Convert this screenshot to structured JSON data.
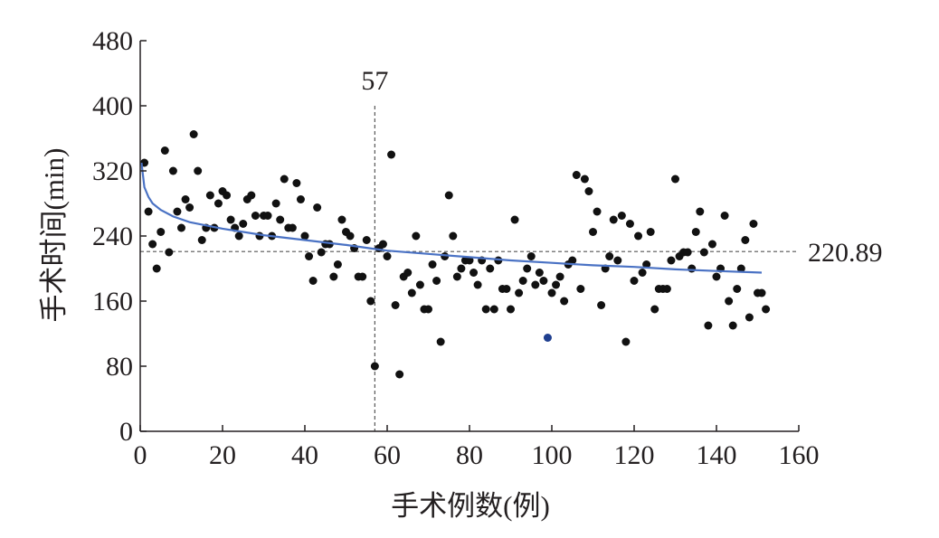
{
  "chart_data": {
    "type": "scatter",
    "title": "",
    "xlabel": "手术例数(例)",
    "ylabel": "手术时间(min)",
    "xlim": [
      0,
      160
    ],
    "ylim": [
      0,
      480
    ],
    "x_ticks": [
      0,
      20,
      40,
      60,
      80,
      100,
      120,
      140,
      160
    ],
    "y_ticks": [
      0,
      80,
      160,
      240,
      320,
      400,
      480
    ],
    "x_tick_labels": [
      "0",
      "20",
      "40",
      "60",
      "80",
      "100",
      "120",
      "140",
      "160"
    ],
    "y_tick_labels": [
      "0",
      "80",
      "160",
      "240",
      "320",
      "400",
      "480"
    ],
    "grid": false,
    "legend": "none",
    "point_color": "#111111",
    "highlight_point_color": "#1f3f8f",
    "fit_color": "#4a72c4",
    "reference_line_color": "#555555",
    "series": [
      {
        "type": "scatter",
        "points": [
          [
            1,
            330
          ],
          [
            2,
            270
          ],
          [
            3,
            230
          ],
          [
            4,
            200
          ],
          [
            5,
            245
          ],
          [
            6,
            345
          ],
          [
            7,
            220
          ],
          [
            8,
            320
          ],
          [
            9,
            270
          ],
          [
            10,
            250
          ],
          [
            11,
            285
          ],
          [
            12,
            275
          ],
          [
            13,
            365
          ],
          [
            14,
            320
          ],
          [
            15,
            235
          ],
          [
            16,
            250
          ],
          [
            17,
            290
          ],
          [
            18,
            250
          ],
          [
            19,
            280
          ],
          [
            20,
            295
          ],
          [
            21,
            290
          ],
          [
            22,
            260
          ],
          [
            23,
            250
          ],
          [
            24,
            240
          ],
          [
            25,
            255
          ],
          [
            26,
            285
          ],
          [
            27,
            290
          ],
          [
            28,
            265
          ],
          [
            29,
            240
          ],
          [
            30,
            265
          ],
          [
            31,
            265
          ],
          [
            32,
            240
          ],
          [
            33,
            280
          ],
          [
            34,
            260
          ],
          [
            35,
            310
          ],
          [
            36,
            250
          ],
          [
            37,
            250
          ],
          [
            38,
            305
          ],
          [
            39,
            285
          ],
          [
            40,
            240
          ],
          [
            41,
            215
          ],
          [
            42,
            185
          ],
          [
            43,
            275
          ],
          [
            44,
            220
          ],
          [
            45,
            230
          ],
          [
            46,
            230
          ],
          [
            47,
            190
          ],
          [
            48,
            205
          ],
          [
            49,
            260
          ],
          [
            50,
            245
          ],
          [
            51,
            240
          ],
          [
            52,
            225
          ],
          [
            53,
            190
          ],
          [
            54,
            190
          ],
          [
            55,
            235
          ],
          [
            56,
            160
          ],
          [
            57,
            80
          ],
          [
            58,
            225
          ],
          [
            59,
            230
          ],
          [
            60,
            215
          ],
          [
            61,
            340
          ],
          [
            62,
            155
          ],
          [
            63,
            70
          ],
          [
            64,
            190
          ],
          [
            65,
            195
          ],
          [
            66,
            170
          ],
          [
            67,
            240
          ],
          [
            68,
            180
          ],
          [
            69,
            150
          ],
          [
            70,
            150
          ],
          [
            71,
            205
          ],
          [
            72,
            185
          ],
          [
            73,
            110
          ],
          [
            74,
            215
          ],
          [
            75,
            290
          ],
          [
            76,
            240
          ],
          [
            77,
            190
          ],
          [
            78,
            200
          ],
          [
            79,
            210
          ],
          [
            80,
            210
          ],
          [
            81,
            195
          ],
          [
            82,
            180
          ],
          [
            83,
            210
          ],
          [
            84,
            150
          ],
          [
            85,
            200
          ],
          [
            86,
            150
          ],
          [
            87,
            210
          ],
          [
            88,
            175
          ],
          [
            89,
            175
          ],
          [
            90,
            150
          ],
          [
            91,
            260
          ],
          [
            92,
            170
          ],
          [
            93,
            185
          ],
          [
            94,
            200
          ],
          [
            95,
            215
          ],
          [
            96,
            180
          ],
          [
            97,
            195
          ],
          [
            98,
            185
          ],
          [
            99,
            115
          ],
          [
            100,
            170
          ],
          [
            101,
            180
          ],
          [
            102,
            190
          ],
          [
            103,
            160
          ],
          [
            104,
            205
          ],
          [
            105,
            210
          ],
          [
            106,
            315
          ],
          [
            107,
            175
          ],
          [
            108,
            310
          ],
          [
            109,
            295
          ],
          [
            110,
            245
          ],
          [
            111,
            270
          ],
          [
            112,
            155
          ],
          [
            113,
            200
          ],
          [
            114,
            215
          ],
          [
            115,
            260
          ],
          [
            116,
            210
          ],
          [
            117,
            265
          ],
          [
            118,
            110
          ],
          [
            119,
            255
          ],
          [
            120,
            185
          ],
          [
            121,
            240
          ],
          [
            122,
            195
          ],
          [
            123,
            205
          ],
          [
            124,
            245
          ],
          [
            125,
            150
          ],
          [
            126,
            175
          ],
          [
            127,
            175
          ],
          [
            128,
            175
          ],
          [
            129,
            210
          ],
          [
            130,
            310
          ],
          [
            131,
            215
          ],
          [
            132,
            220
          ],
          [
            133,
            220
          ],
          [
            134,
            200
          ],
          [
            135,
            245
          ],
          [
            136,
            270
          ],
          [
            137,
            220
          ],
          [
            138,
            130
          ],
          [
            139,
            230
          ],
          [
            140,
            190
          ],
          [
            141,
            200
          ],
          [
            142,
            265
          ],
          [
            143,
            160
          ],
          [
            144,
            130
          ],
          [
            145,
            175
          ],
          [
            146,
            200
          ],
          [
            147,
            235
          ],
          [
            148,
            140
          ],
          [
            149,
            255
          ],
          [
            150,
            170
          ],
          [
            151,
            170
          ],
          [
            152,
            150
          ]
        ],
        "highlight_point": [
          99,
          115
        ]
      },
      {
        "type": "line",
        "fit": "logarithmic",
        "points": [
          [
            0.3,
            330
          ],
          [
            1,
            300
          ],
          [
            2,
            288
          ],
          [
            3,
            280
          ],
          [
            5,
            272
          ],
          [
            8,
            264
          ],
          [
            12,
            257
          ],
          [
            20,
            249
          ],
          [
            30,
            241
          ],
          [
            40,
            235
          ],
          [
            50,
            229
          ],
          [
            57,
            224
          ],
          [
            60,
            222
          ],
          [
            70,
            218
          ],
          [
            80,
            214
          ],
          [
            90,
            210
          ],
          [
            100,
            207
          ],
          [
            110,
            204
          ],
          [
            120,
            202
          ],
          [
            130,
            199
          ],
          [
            140,
            197
          ],
          [
            151,
            195
          ]
        ]
      }
    ],
    "reference_lines": {
      "vertical_x": 57,
      "vertical_label": "57",
      "horizontal_y": 220.89,
      "horizontal_label": "220.89"
    }
  }
}
